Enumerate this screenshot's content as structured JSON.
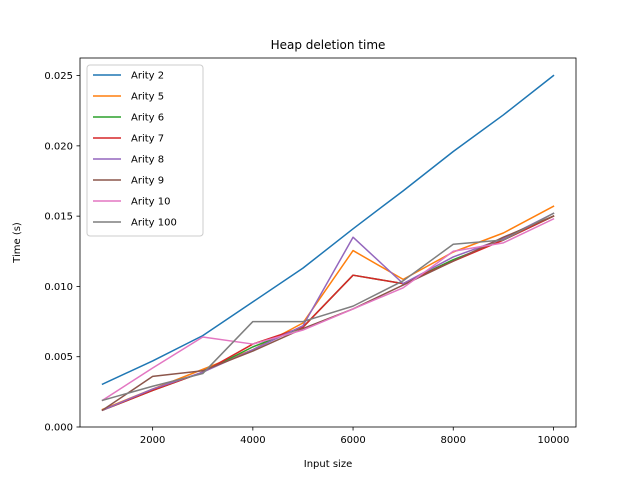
{
  "chart_data": {
    "type": "line",
    "title": "Heap deletion time",
    "xlabel": "Input size",
    "ylabel": "Time (s)",
    "xlim": [
      550,
      10450
    ],
    "ylim": [
      0,
      0.02625
    ],
    "xticks": [
      2000,
      4000,
      6000,
      8000,
      10000
    ],
    "xtick_labels": [
      "2000",
      "4000",
      "6000",
      "8000",
      "10000"
    ],
    "yticks": [
      0,
      0.005,
      0.01,
      0.015,
      0.02,
      0.025
    ],
    "ytick_labels": [
      "0.000",
      "0.005",
      "0.010",
      "0.015",
      "0.020",
      "0.025"
    ],
    "grid": false,
    "legend_position": "top-left",
    "x": [
      1000,
      2000,
      3000,
      4000,
      5000,
      6000,
      7000,
      8000,
      9000,
      10000
    ],
    "series": [
      {
        "name": "Arity 2",
        "color": "#1f77b4",
        "values": [
          0.00305,
          0.0047,
          0.0065,
          0.0089,
          0.0113,
          0.0141,
          0.0168,
          0.0196,
          0.0222,
          0.025
        ]
      },
      {
        "name": "Arity 5",
        "color": "#ff7f0e",
        "values": [
          0.00125,
          0.0027,
          0.0041,
          0.0055,
          0.0074,
          0.01255,
          0.0105,
          0.01245,
          0.0138,
          0.0157
        ]
      },
      {
        "name": "Arity 6",
        "color": "#2ca02c",
        "values": [
          0.0012,
          0.0026,
          0.0039,
          0.0057,
          0.0071,
          0.0108,
          0.0102,
          0.0119,
          0.0133,
          0.015
        ]
      },
      {
        "name": "Arity 7",
        "color": "#d62728",
        "values": [
          0.0012,
          0.0026,
          0.0039,
          0.0059,
          0.0071,
          0.0108,
          0.0102,
          0.0118,
          0.0133,
          0.015
        ]
      },
      {
        "name": "Arity 8",
        "color": "#9467bd",
        "values": [
          0.0012,
          0.0027,
          0.0039,
          0.0055,
          0.0072,
          0.0135,
          0.0102,
          0.0121,
          0.0134,
          0.0152
        ]
      },
      {
        "name": "Arity 9",
        "color": "#8c564b",
        "values": [
          0.0012,
          0.0036,
          0.004,
          0.0054,
          0.007,
          0.0084,
          0.0101,
          0.0118,
          0.0135,
          0.015
        ]
      },
      {
        "name": "Arity 10",
        "color": "#e377c2",
        "values": [
          0.0019,
          0.0042,
          0.0064,
          0.0059,
          0.0069,
          0.0084,
          0.0099,
          0.0125,
          0.0131,
          0.0148
        ]
      },
      {
        "name": "Arity 100",
        "color": "#7f7f7f",
        "values": [
          0.0019,
          0.0029,
          0.0038,
          0.0075,
          0.0075,
          0.0086,
          0.0104,
          0.013,
          0.0133,
          0.0152
        ]
      }
    ]
  }
}
